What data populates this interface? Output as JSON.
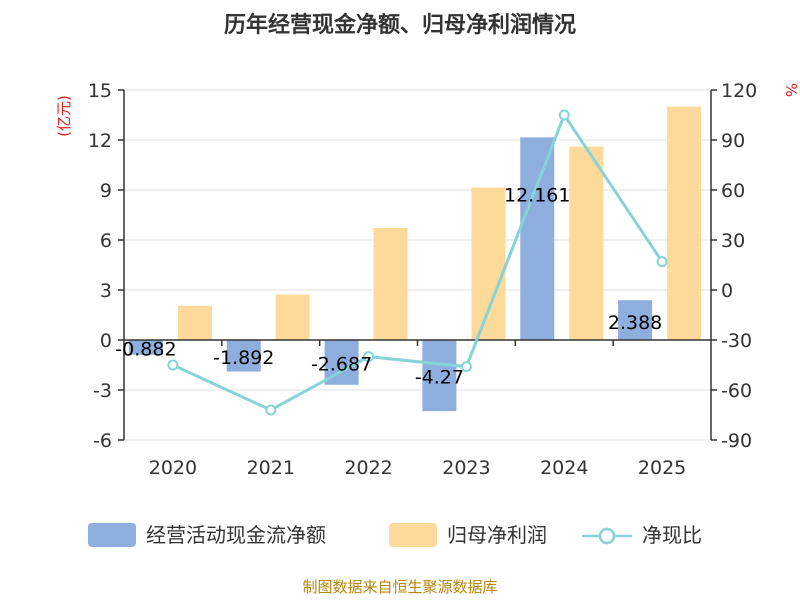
{
  "title": "历年经营现金净额、归母净利润情况",
  "source": "制图数据来自恒生聚源数据库",
  "colors": {
    "cash_flow": "#8eaedd",
    "net_profit": "#fdd99a",
    "ratio": "#86d3d8",
    "axis": "#333333",
    "grid": "#e0e0e0",
    "unit": "#e02020",
    "source": "#b8860b"
  },
  "chart_data": {
    "type": "bar",
    "title": "历年经营现金净额、归母净利润情况",
    "categories": [
      "2020",
      "2021",
      "2022",
      "2023",
      "2024",
      "2025"
    ],
    "left_axis": {
      "unit_label": "(亿元)",
      "ylim": [
        -6,
        15
      ],
      "ticks": [
        "15",
        "12",
        "9",
        "6",
        "3",
        "0",
        "-3",
        "-6"
      ]
    },
    "right_axis": {
      "unit_label": "%",
      "ylim": [
        -90,
        120
      ],
      "ticks": [
        "120",
        "90",
        "60",
        "30",
        "0",
        "-30",
        "-60",
        "-90"
      ]
    },
    "series": [
      {
        "name": "经营活动现金流净额",
        "type": "bar",
        "axis": "left",
        "values": [
          -0.882,
          -1.892,
          -2.687,
          -4.27,
          12.161,
          2.388
        ],
        "labels": [
          "-0.882",
          "-1.892",
          "-2.687",
          "-4.27",
          "12.161",
          "2.388"
        ]
      },
      {
        "name": "归母净利润",
        "type": "bar",
        "axis": "left",
        "values": [
          2.05,
          2.72,
          6.72,
          9.15,
          11.6,
          14.0
        ]
      },
      {
        "name": "净现比",
        "type": "line",
        "axis": "right",
        "values": [
          -45,
          -72,
          -40,
          -46,
          105,
          17
        ]
      }
    ],
    "legend": {
      "placement": "bottom"
    },
    "grid": true
  }
}
